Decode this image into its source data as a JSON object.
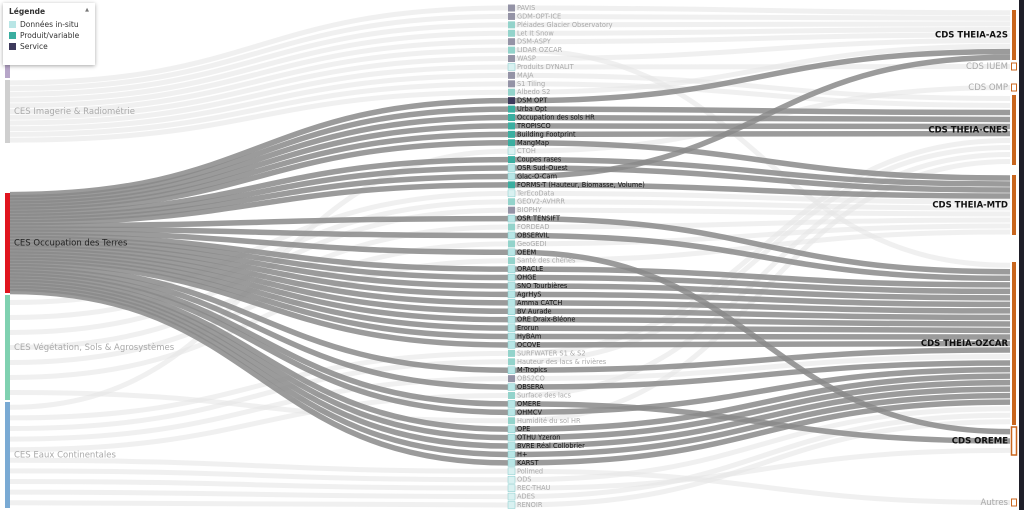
{
  "legend": {
    "title": "Légende",
    "items": [
      {
        "label": "Données in-situ",
        "color": "#b9e6e6"
      },
      {
        "label": "Produit/variable",
        "color": "#3aaea0"
      },
      {
        "label": "Service",
        "color": "#3d3a5c"
      }
    ]
  },
  "left_nodes": [
    "CES Imagerie & Radiométrie",
    "CES Occupation des Terres",
    "CES Végétation, Sols & Agrosystèmes",
    "CES Eaux Continentales"
  ],
  "right_nodes": [
    "CDS THEIA-A2S",
    "CDS IUEM",
    "CDS OMP",
    "CDS THEIA-CNES",
    "CDS THEIA-MTD",
    "CDS THEIA-OZCAR",
    "CDS OREME",
    "Autres"
  ],
  "middle_nodes": [
    {
      "label": "PAVIS",
      "type": 2,
      "ces": 0,
      "cds": 0
    },
    {
      "label": "GDM-OPT-ICE",
      "type": 2,
      "ces": 0,
      "cds": 0
    },
    {
      "label": "Pléiades Glacier Observatory",
      "type": 1,
      "ces": 0,
      "cds": 0
    },
    {
      "label": "Let It Snow",
      "type": 1,
      "ces": 0,
      "cds": 0
    },
    {
      "label": "DSM-ASPY",
      "type": 2,
      "ces": 0,
      "cds": 0
    },
    {
      "label": "LIDAR OZCAR",
      "type": 1,
      "ces": 0,
      "cds": 5
    },
    {
      "label": "WASP",
      "type": 2,
      "ces": 0,
      "cds": 0
    },
    {
      "label": "Produits DYNALIT",
      "type": 0,
      "ces": 0,
      "cds": 1
    },
    {
      "label": "MAJA",
      "type": 2,
      "ces": 0,
      "cds": 3
    },
    {
      "label": "S1 Tiling",
      "type": 2,
      "ces": 0,
      "cds": 3
    },
    {
      "label": "Albedo S2",
      "type": 1,
      "ces": 0,
      "cds": 0
    },
    {
      "label": "DSM OPT",
      "type": 2,
      "ces": 1,
      "cds": 0
    },
    {
      "label": "Urba Opt",
      "type": 1,
      "ces": 1,
      "cds": 3
    },
    {
      "label": "Occupation des sols HR",
      "type": 1,
      "ces": 1,
      "cds": 3
    },
    {
      "label": "TROPISCO",
      "type": 1,
      "ces": 1,
      "cds": 3
    },
    {
      "label": "Building Footprint",
      "type": 1,
      "ces": 1,
      "cds": 3
    },
    {
      "label": "MangMap",
      "type": 1,
      "ces": 1,
      "cds": 4
    },
    {
      "label": "CTOH",
      "type": 0,
      "ces": 3,
      "cds": 2
    },
    {
      "label": "Coupes rases",
      "type": 1,
      "ces": 1,
      "cds": 4
    },
    {
      "label": "OSR Sud-Ouest",
      "type": 0,
      "ces": 1,
      "cds": 4
    },
    {
      "label": "Glac-O-Cam",
      "type": 0,
      "ces": 1,
      "cds": 0
    },
    {
      "label": "FORMS-T (Hauteur, Biomasse, Volume)",
      "type": 1,
      "ces": 1,
      "cds": 4
    },
    {
      "label": "TerEcoData",
      "type": 0,
      "ces": 2,
      "cds": 4
    },
    {
      "label": "GEOV2-AVHRR",
      "type": 1,
      "ces": 2,
      "cds": 4
    },
    {
      "label": "BIOPHY",
      "type": 2,
      "ces": 2,
      "cds": 4
    },
    {
      "label": "OSR TENSIFT",
      "type": 0,
      "ces": 1,
      "cds": 5
    },
    {
      "label": "FORDEAD",
      "type": 1,
      "ces": 2,
      "cds": 4
    },
    {
      "label": "OBSERVIL",
      "type": 0,
      "ces": 1,
      "cds": 5
    },
    {
      "label": "GeoGEDI",
      "type": 1,
      "ces": 2,
      "cds": 4
    },
    {
      "label": "OEEM",
      "type": 0,
      "ces": 1,
      "cds": 6
    },
    {
      "label": "Santé des chênes",
      "type": 1,
      "ces": 2,
      "cds": 4
    },
    {
      "label": "ORACLE",
      "type": 0,
      "ces": 1,
      "cds": 5
    },
    {
      "label": "OHGE",
      "type": 0,
      "ces": 1,
      "cds": 5
    },
    {
      "label": "SNO Tourbières",
      "type": 0,
      "ces": 1,
      "cds": 5
    },
    {
      "label": "AgrHyS",
      "type": 0,
      "ces": 1,
      "cds": 5
    },
    {
      "label": "Amma CATCH",
      "type": 0,
      "ces": 1,
      "cds": 5
    },
    {
      "label": "BV Aurade",
      "type": 0,
      "ces": 1,
      "cds": 5
    },
    {
      "label": "ORE Draix-Bléone",
      "type": 0,
      "ces": 1,
      "cds": 5
    },
    {
      "label": "Erorun",
      "type": 0,
      "ces": 1,
      "cds": 5
    },
    {
      "label": "HyBAm",
      "type": 0,
      "ces": 1,
      "cds": 5
    },
    {
      "label": "OCOVE",
      "type": 0,
      "ces": 1,
      "cds": 5
    },
    {
      "label": "SURFWATER S1 & S2",
      "type": 1,
      "ces": 3,
      "cds": 3
    },
    {
      "label": "Hauteur des lacs & rivières",
      "type": 1,
      "ces": 3,
      "cds": 3
    },
    {
      "label": "M-Tropics",
      "type": 0,
      "ces": 1,
      "cds": 5
    },
    {
      "label": "OBS2CO",
      "type": 2,
      "ces": 3,
      "cds": 5
    },
    {
      "label": "OBSERA",
      "type": 0,
      "ces": 1,
      "cds": 5
    },
    {
      "label": "Surface des lacs",
      "type": 1,
      "ces": 3,
      "cds": 3
    },
    {
      "label": "OMERE",
      "type": 0,
      "ces": 1,
      "cds": 6
    },
    {
      "label": "OHMCV",
      "type": 0,
      "ces": 1,
      "cds": 5
    },
    {
      "label": "Humidité du sol HR",
      "type": 1,
      "ces": 2,
      "cds": 3
    },
    {
      "label": "OPE",
      "type": 0,
      "ces": 1,
      "cds": 5
    },
    {
      "label": "OTHU Yzeron",
      "type": 0,
      "ces": 1,
      "cds": 5
    },
    {
      "label": "BVRE Réal Collobrier",
      "type": 0,
      "ces": 1,
      "cds": 5
    },
    {
      "label": "H+",
      "type": 0,
      "ces": 1,
      "cds": 5
    },
    {
      "label": "KARST",
      "type": 0,
      "ces": 1,
      "cds": 5
    },
    {
      "label": "Polimed",
      "type": 0,
      "ces": 3,
      "cds": 7
    },
    {
      "label": "ODS",
      "type": 0,
      "ces": 3,
      "cds": 5
    },
    {
      "label": "REC-THAU",
      "type": 0,
      "ces": 3,
      "cds": 6
    },
    {
      "label": "ADES",
      "type": 0,
      "ces": 3,
      "cds": 5
    },
    {
      "label": "RENOIR",
      "type": 0,
      "ces": 3,
      "cds": 5
    }
  ],
  "active_left": 1
}
